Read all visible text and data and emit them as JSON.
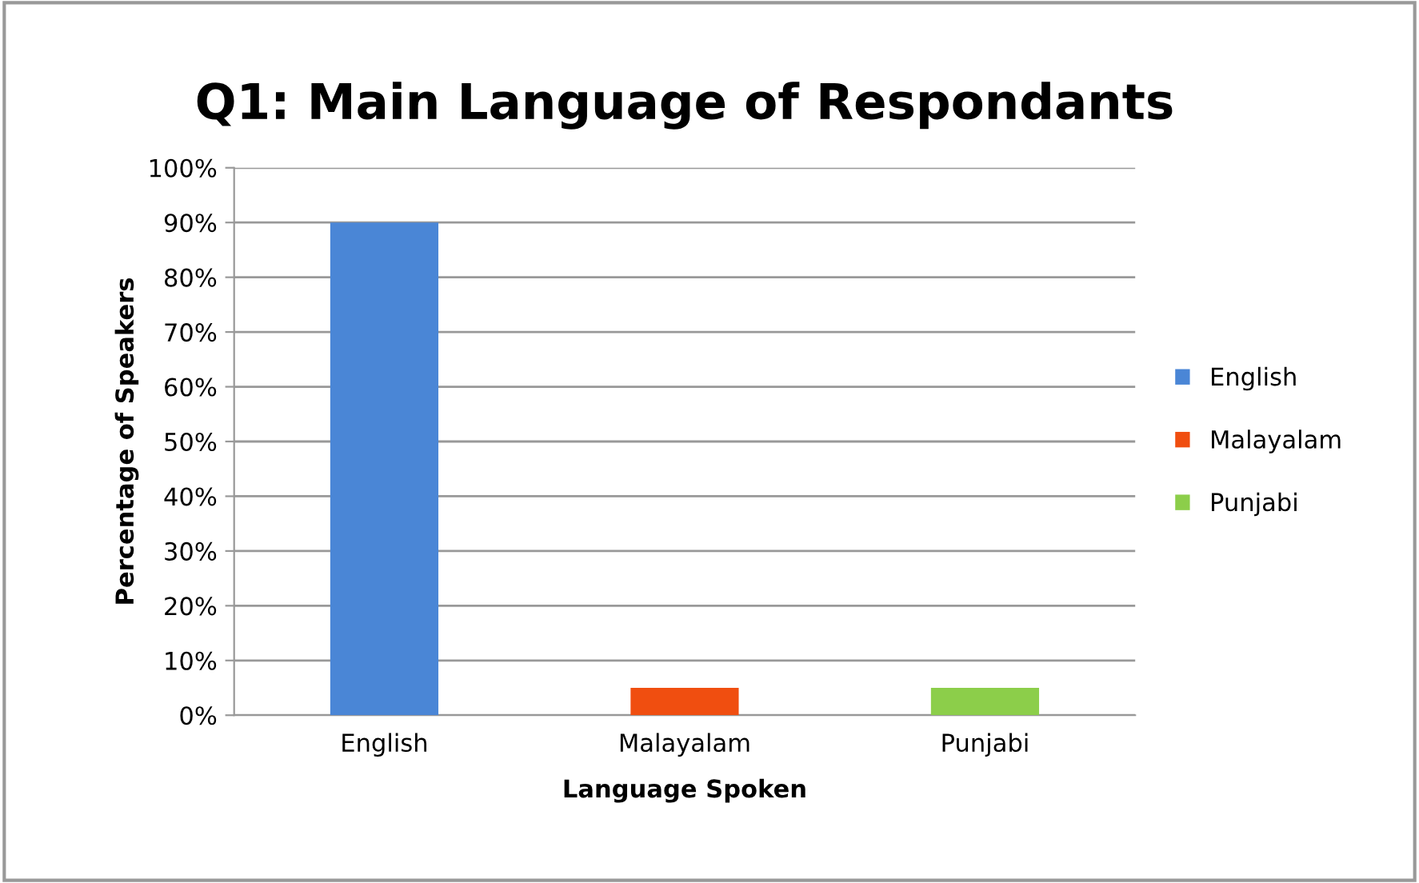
{
  "chart_data": {
    "type": "bar",
    "title": "Q1: Main Language of Respondants",
    "xlabel": "Language Spoken",
    "ylabel": "Percentage of Speakers",
    "categories": [
      "English",
      "Malayalam",
      "Punjabi"
    ],
    "series": [
      {
        "name": "English",
        "color": "#4a86d6",
        "values": [
          90,
          null,
          null
        ]
      },
      {
        "name": "Malayalam",
        "color": "#f04e10",
        "values": [
          null,
          5,
          null
        ]
      },
      {
        "name": "Punjabi",
        "color": "#8cce4a",
        "values": [
          null,
          null,
          5
        ]
      }
    ],
    "ylim": [
      0,
      100
    ],
    "yticks": [
      {
        "value": 0,
        "label": "0%"
      },
      {
        "value": 10,
        "label": "10%"
      },
      {
        "value": 20,
        "label": "20%"
      },
      {
        "value": 30,
        "label": "30%"
      },
      {
        "value": 40,
        "label": "40%"
      },
      {
        "value": 50,
        "label": "50%"
      },
      {
        "value": 60,
        "label": "60%"
      },
      {
        "value": 70,
        "label": "70%"
      },
      {
        "value": 80,
        "label": "80%"
      },
      {
        "value": 90,
        "label": "90%"
      },
      {
        "value": 100,
        "label": "100%"
      }
    ],
    "grid": "y",
    "legend": "right"
  }
}
